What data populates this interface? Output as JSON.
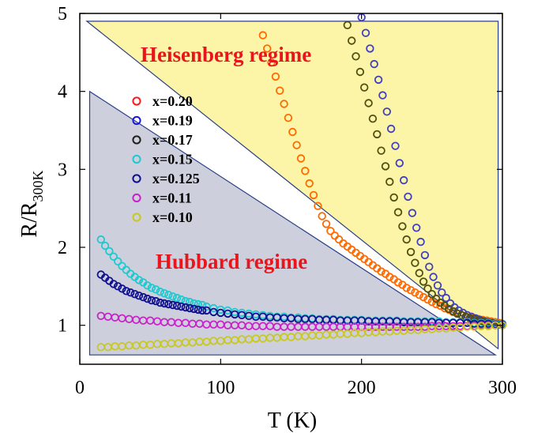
{
  "chart_data": {
    "type": "scatter",
    "xlabel": "T (K)",
    "ylabel": "R/R",
    "ylabel_subscript": "300K",
    "xlim": [
      0,
      300
    ],
    "ylim": [
      0.5,
      5
    ],
    "xticks": [
      "0",
      "100",
      "200",
      "300"
    ],
    "yticks": [
      "1",
      "2",
      "3",
      "4",
      "5"
    ],
    "xtick_values": [
      0,
      100,
      200,
      300
    ],
    "ytick_values": [
      1,
      2,
      3,
      4,
      5
    ],
    "grid": false,
    "legend_position": "upper-left inside",
    "regions": [
      {
        "label": "Heisenberg regime",
        "color": "#fcf5a8",
        "vertices": [
          [
            5,
            4.9
          ],
          [
            297,
            4.9
          ],
          [
            297,
            0.7
          ]
        ]
      },
      {
        "label": "Hubbard regime",
        "color": "#cdd0dc",
        "vertices": [
          [
            7,
            4.0
          ],
          [
            7,
            0.62
          ],
          [
            295,
            0.62
          ]
        ]
      }
    ],
    "series": [
      {
        "name": "x=0.20",
        "color": "#ff6a00",
        "marker_color": "#ff1a1a",
        "x": [
          130,
          133,
          136,
          139,
          142,
          145,
          148,
          151,
          154,
          157,
          160,
          163,
          166,
          169,
          172,
          175,
          178,
          181,
          184,
          187,
          190,
          193,
          196,
          199,
          202,
          205,
          208,
          211,
          214,
          217,
          220,
          223,
          226,
          229,
          232,
          235,
          238,
          241,
          244,
          247,
          250,
          253,
          256,
          259,
          262,
          265,
          268,
          271,
          274,
          277,
          280,
          283,
          286,
          289,
          292,
          295,
          298
        ],
        "y": [
          4.72,
          4.55,
          4.37,
          4.19,
          4.01,
          3.84,
          3.66,
          3.48,
          3.31,
          3.14,
          2.98,
          2.82,
          2.67,
          2.53,
          2.4,
          2.3,
          2.21,
          2.15,
          2.1,
          2.05,
          2.01,
          1.97,
          1.93,
          1.89,
          1.85,
          1.81,
          1.77,
          1.73,
          1.69,
          1.66,
          1.62,
          1.59,
          1.55,
          1.52,
          1.48,
          1.45,
          1.42,
          1.39,
          1.36,
          1.33,
          1.3,
          1.27,
          1.25,
          1.22,
          1.2,
          1.17,
          1.15,
          1.13,
          1.11,
          1.1,
          1.09,
          1.08,
          1.07,
          1.06,
          1.05,
          1.04,
          1.03
        ]
      },
      {
        "name": "x=0.19",
        "color": "#4040c0",
        "marker_color": "#1a1ad6",
        "x": [
          200,
          203,
          206,
          209,
          212,
          215,
          218,
          221,
          224,
          227,
          230,
          233,
          236,
          239,
          242,
          245,
          248,
          251,
          254,
          257,
          260,
          263,
          266,
          269,
          272,
          275,
          278,
          281,
          284,
          287,
          290,
          293,
          296,
          299
        ],
        "y": [
          4.95,
          4.75,
          4.55,
          4.35,
          4.15,
          3.95,
          3.74,
          3.52,
          3.3,
          3.08,
          2.86,
          2.65,
          2.44,
          2.25,
          2.07,
          1.9,
          1.75,
          1.62,
          1.51,
          1.42,
          1.35,
          1.28,
          1.23,
          1.19,
          1.16,
          1.13,
          1.11,
          1.09,
          1.07,
          1.05,
          1.04,
          1.03,
          1.02,
          1.01
        ]
      },
      {
        "name": "x=0.17",
        "color": "#505010",
        "marker_color": "#202020",
        "x": [
          190,
          193,
          196,
          199,
          202,
          205,
          208,
          211,
          214,
          217,
          220,
          223,
          226,
          229,
          232,
          235,
          238,
          241,
          244,
          247,
          250,
          253,
          256,
          259,
          262,
          265,
          268,
          271,
          274,
          277,
          280,
          283,
          286,
          289,
          292,
          295,
          298
        ],
        "y": [
          4.85,
          4.65,
          4.45,
          4.25,
          4.05,
          3.85,
          3.65,
          3.45,
          3.24,
          3.04,
          2.84,
          2.64,
          2.45,
          2.27,
          2.1,
          1.94,
          1.8,
          1.67,
          1.56,
          1.47,
          1.4,
          1.34,
          1.29,
          1.25,
          1.21,
          1.18,
          1.15,
          1.13,
          1.11,
          1.09,
          1.08,
          1.06,
          1.05,
          1.04,
          1.03,
          1.02,
          1.01
        ]
      },
      {
        "name": "x=0.15",
        "color": "#20c8d0",
        "marker_color": "#20c8d0",
        "x": [
          15,
          18,
          21,
          24,
          27,
          30,
          33,
          36,
          39,
          42,
          45,
          48,
          51,
          54,
          57,
          60,
          63,
          66,
          69,
          72,
          75,
          78,
          81,
          84,
          87,
          90,
          95,
          100,
          105,
          110,
          115,
          120,
          125,
          130,
          135,
          140,
          145,
          150,
          155,
          160,
          165,
          170,
          175,
          180,
          185,
          190,
          195,
          200,
          205,
          210,
          215,
          220,
          225,
          230,
          235,
          240,
          245,
          250,
          255,
          260,
          265,
          270,
          275,
          280,
          285,
          290,
          295,
          300
        ],
        "y": [
          2.1,
          2.02,
          1.95,
          1.88,
          1.82,
          1.76,
          1.71,
          1.66,
          1.62,
          1.58,
          1.55,
          1.51,
          1.48,
          1.46,
          1.43,
          1.41,
          1.39,
          1.37,
          1.35,
          1.33,
          1.31,
          1.3,
          1.28,
          1.27,
          1.26,
          1.24,
          1.22,
          1.2,
          1.19,
          1.17,
          1.16,
          1.15,
          1.14,
          1.13,
          1.12,
          1.11,
          1.11,
          1.1,
          1.1,
          1.09,
          1.09,
          1.08,
          1.08,
          1.08,
          1.07,
          1.07,
          1.07,
          1.07,
          1.06,
          1.06,
          1.06,
          1.06,
          1.06,
          1.05,
          1.05,
          1.05,
          1.05,
          1.05,
          1.05,
          1.04,
          1.04,
          1.04,
          1.04,
          1.03,
          1.03,
          1.03,
          1.02,
          1.02
        ]
      },
      {
        "name": "x=0.125",
        "color": "#101090",
        "marker_color": "#101090",
        "x": [
          15,
          18,
          21,
          24,
          27,
          30,
          33,
          36,
          39,
          42,
          45,
          48,
          51,
          54,
          57,
          60,
          63,
          66,
          69,
          72,
          75,
          78,
          81,
          84,
          87,
          90,
          95,
          100,
          105,
          110,
          115,
          120,
          125,
          130,
          135,
          140,
          145,
          150,
          155,
          160,
          165,
          170,
          175,
          180,
          185,
          190,
          195,
          200,
          205,
          210,
          215,
          220,
          225,
          230,
          235,
          240,
          245,
          250,
          255,
          260,
          265,
          270,
          275,
          280,
          285,
          290,
          295,
          300
        ],
        "y": [
          1.65,
          1.61,
          1.57,
          1.53,
          1.5,
          1.47,
          1.44,
          1.42,
          1.4,
          1.38,
          1.36,
          1.34,
          1.32,
          1.31,
          1.29,
          1.28,
          1.27,
          1.26,
          1.25,
          1.24,
          1.23,
          1.22,
          1.21,
          1.2,
          1.19,
          1.19,
          1.17,
          1.16,
          1.15,
          1.14,
          1.13,
          1.12,
          1.11,
          1.11,
          1.1,
          1.1,
          1.09,
          1.09,
          1.08,
          1.08,
          1.08,
          1.07,
          1.07,
          1.07,
          1.06,
          1.06,
          1.06,
          1.06,
          1.05,
          1.05,
          1.05,
          1.05,
          1.05,
          1.04,
          1.04,
          1.04,
          1.04,
          1.04,
          1.03,
          1.03,
          1.03,
          1.03,
          1.03,
          1.02,
          1.02,
          1.02,
          1.01,
          1.01
        ]
      },
      {
        "name": "x=0.11",
        "color": "#cc20cc",
        "marker_color": "#cc20cc",
        "x": [
          15,
          20,
          25,
          30,
          35,
          40,
          45,
          50,
          55,
          60,
          65,
          70,
          75,
          80,
          85,
          90,
          95,
          100,
          105,
          110,
          115,
          120,
          125,
          130,
          135,
          140,
          145,
          150,
          155,
          160,
          165,
          170,
          175,
          180,
          185,
          190,
          195,
          200,
          205,
          210,
          215,
          220,
          225,
          230,
          235,
          240,
          245,
          250,
          255,
          260,
          265,
          270,
          275,
          280,
          285,
          290,
          295,
          300
        ],
        "y": [
          1.12,
          1.11,
          1.1,
          1.09,
          1.08,
          1.07,
          1.06,
          1.06,
          1.05,
          1.04,
          1.04,
          1.03,
          1.03,
          1.02,
          1.02,
          1.01,
          1.01,
          1.01,
          1.0,
          1.0,
          1.0,
          0.99,
          0.99,
          0.99,
          0.99,
          0.98,
          0.98,
          0.98,
          0.98,
          0.98,
          0.98,
          0.98,
          0.98,
          0.98,
          0.98,
          0.98,
          0.98,
          0.98,
          0.98,
          0.98,
          0.98,
          0.98,
          0.98,
          0.98,
          0.98,
          0.98,
          0.98,
          0.99,
          0.99,
          0.99,
          0.99,
          0.99,
          0.99,
          0.99,
          1.0,
          1.0,
          1.0,
          1.0
        ]
      },
      {
        "name": "x=0.10",
        "color": "#c8c820",
        "marker_color": "#c8c820",
        "x": [
          15,
          20,
          25,
          30,
          35,
          40,
          45,
          50,
          55,
          60,
          65,
          70,
          75,
          80,
          85,
          90,
          95,
          100,
          105,
          110,
          115,
          120,
          125,
          130,
          135,
          140,
          145,
          150,
          155,
          160,
          165,
          170,
          175,
          180,
          185,
          190,
          195,
          200,
          205,
          210,
          215,
          220,
          225,
          230,
          235,
          240,
          245,
          250,
          255,
          260,
          265,
          270,
          275,
          280,
          285,
          290,
          295,
          300
        ],
        "y": [
          0.72,
          0.72,
          0.73,
          0.73,
          0.74,
          0.74,
          0.75,
          0.75,
          0.76,
          0.76,
          0.77,
          0.77,
          0.78,
          0.78,
          0.79,
          0.79,
          0.8,
          0.8,
          0.81,
          0.81,
          0.82,
          0.82,
          0.83,
          0.83,
          0.84,
          0.84,
          0.85,
          0.85,
          0.86,
          0.86,
          0.87,
          0.87,
          0.88,
          0.88,
          0.89,
          0.89,
          0.9,
          0.9,
          0.91,
          0.91,
          0.92,
          0.92,
          0.93,
          0.93,
          0.94,
          0.94,
          0.95,
          0.95,
          0.96,
          0.96,
          0.97,
          0.97,
          0.98,
          0.98,
          0.99,
          0.99,
          1.0,
          1.0
        ]
      }
    ]
  }
}
